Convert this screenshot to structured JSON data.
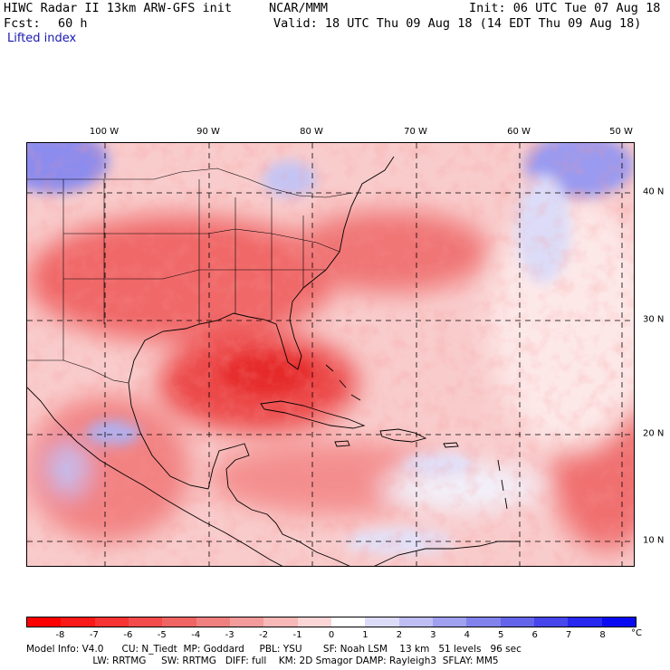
{
  "header": {
    "title_left": "HIWC Radar II 13km ARW-GFS init",
    "agency": "NCAR/MMM",
    "init": "Init: 06 UTC Tue 07 Aug 18",
    "fcst_label": "Fcst:",
    "fcst_value": "60 h",
    "valid": "Valid: 18 UTC Thu 09 Aug 18 (14 EDT Thu 09 Aug 18)",
    "field": "Lifted index"
  },
  "map": {
    "region": "Gulf of Mexico, Caribbean, Eastern US, Western Atlantic",
    "lon_labels": [
      "100 W",
      "90 W",
      "80 W",
      "70 W",
      "60 W",
      "50 W"
    ],
    "lat_labels": [
      "40 N",
      "30 N",
      "20 N",
      "10 N"
    ],
    "colors": {
      "strong_unstable": "#e83030",
      "moderate_unstable": "#f07070",
      "weak_unstable": "#f8b4b4",
      "neutral": "#ffffff",
      "weak_stable": "#c8c8f4",
      "stable": "#8c8cee"
    }
  },
  "colorbar": {
    "ticks": [
      "-8",
      "-7",
      "-6",
      "-5",
      "-4",
      "-3",
      "-2",
      "-1",
      "0",
      "1",
      "2",
      "3",
      "4",
      "5",
      "6",
      "7",
      "8"
    ],
    "unit": "°C",
    "colors": [
      "#ff0000",
      "#fb1818",
      "#f83333",
      "#f44b4b",
      "#f06464",
      "#f08080",
      "#f49b9b",
      "#f8b8b8",
      "#fcd6d6",
      "#ffffff",
      "#dcdcf8",
      "#bebef4",
      "#a0a0f0",
      "#8282ec",
      "#6464ea",
      "#4646ec",
      "#2828f0",
      "#0a0af2"
    ]
  },
  "model_info": {
    "line1": "Model Info: V4.0      CU: N_Tiedt  MP: Goddard     PBL: YSU       SF: Noah LSM    13 km   51 levels   96 sec",
    "line2": "                      LW: RRTMG     SW: RRTMG   DIFF: full    KM: 2D Smagor DAMP: Rayleigh3  SFLAY: MM5"
  }
}
